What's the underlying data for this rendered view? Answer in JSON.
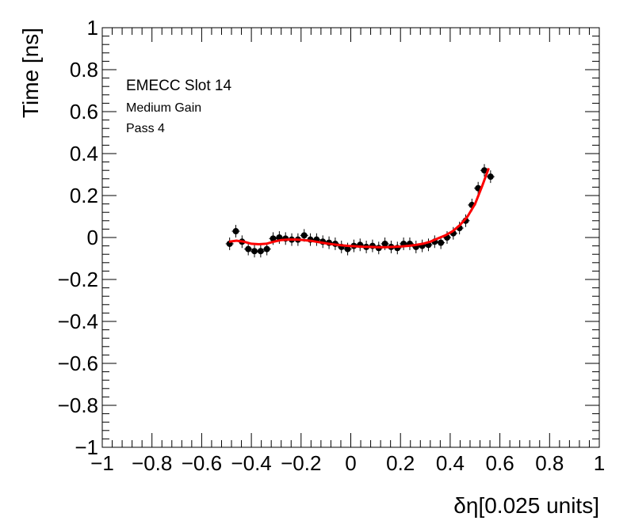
{
  "chart_data": {
    "type": "scatter",
    "title": "",
    "xlabel": "δη[0.025 units]",
    "ylabel": "Time [ns]",
    "xlim": [
      -1,
      1
    ],
    "ylim": [
      -1,
      1
    ],
    "grid": false,
    "x_ticks": [
      "−1",
      "−0.8",
      "−0.6",
      "−0.4",
      "−0.2",
      "0",
      "0.2",
      "0.4",
      "0.6",
      "0.8",
      "1"
    ],
    "y_ticks": [
      "−1",
      "−0.8",
      "−0.6",
      "−0.4",
      "−0.2",
      "0",
      "0.2",
      "0.4",
      "0.6",
      "0.8",
      "1"
    ],
    "annotations": [
      "EMECC Slot 14",
      "Medium Gain",
      "Pass 4"
    ],
    "series": [
      {
        "type": "scatter",
        "color": "#000000",
        "error_y": 0.03,
        "points": [
          [
            -0.4875,
            -0.03
          ],
          [
            -0.4625,
            0.03
          ],
          [
            -0.4375,
            -0.02
          ],
          [
            -0.4125,
            -0.055
          ],
          [
            -0.3875,
            -0.065
          ],
          [
            -0.3625,
            -0.065
          ],
          [
            -0.3375,
            -0.055
          ],
          [
            -0.3125,
            -0.005
          ],
          [
            -0.2875,
            0.0
          ],
          [
            -0.2625,
            -0.005
          ],
          [
            -0.2375,
            -0.01
          ],
          [
            -0.2125,
            -0.01
          ],
          [
            -0.1875,
            0.01
          ],
          [
            -0.1625,
            -0.01
          ],
          [
            -0.1375,
            -0.01
          ],
          [
            -0.1125,
            -0.02
          ],
          [
            -0.0875,
            -0.025
          ],
          [
            -0.0625,
            -0.03
          ],
          [
            -0.0375,
            -0.045
          ],
          [
            -0.0125,
            -0.055
          ],
          [
            0.0125,
            -0.04
          ],
          [
            0.0375,
            -0.035
          ],
          [
            0.0625,
            -0.045
          ],
          [
            0.0875,
            -0.04
          ],
          [
            0.1125,
            -0.05
          ],
          [
            0.1375,
            -0.03
          ],
          [
            0.1625,
            -0.045
          ],
          [
            0.1875,
            -0.05
          ],
          [
            0.2125,
            -0.03
          ],
          [
            0.2375,
            -0.03
          ],
          [
            0.2625,
            -0.045
          ],
          [
            0.2875,
            -0.04
          ],
          [
            0.3125,
            -0.035
          ],
          [
            0.3375,
            -0.02
          ],
          [
            0.3625,
            -0.025
          ],
          [
            0.3875,
            0.0
          ],
          [
            0.4125,
            0.02
          ],
          [
            0.4375,
            0.045
          ],
          [
            0.4625,
            0.08
          ],
          [
            0.4875,
            0.155
          ],
          [
            0.5125,
            0.235
          ],
          [
            0.5375,
            0.32
          ],
          [
            0.5625,
            0.29
          ]
        ]
      },
      {
        "type": "line",
        "color": "#ff0000",
        "points": [
          [
            -0.49,
            -0.02
          ],
          [
            -0.46,
            -0.015
          ],
          [
            -0.43,
            -0.02
          ],
          [
            -0.4,
            -0.03
          ],
          [
            -0.37,
            -0.032
          ],
          [
            -0.34,
            -0.03
          ],
          [
            -0.31,
            -0.02
          ],
          [
            -0.28,
            -0.012
          ],
          [
            -0.25,
            -0.01
          ],
          [
            -0.22,
            -0.01
          ],
          [
            -0.19,
            -0.012
          ],
          [
            -0.16,
            -0.016
          ],
          [
            -0.13,
            -0.022
          ],
          [
            -0.1,
            -0.028
          ],
          [
            -0.07,
            -0.033
          ],
          [
            -0.04,
            -0.037
          ],
          [
            -0.01,
            -0.04
          ],
          [
            0.02,
            -0.042
          ],
          [
            0.05,
            -0.044
          ],
          [
            0.08,
            -0.045
          ],
          [
            0.11,
            -0.046
          ],
          [
            0.14,
            -0.046
          ],
          [
            0.17,
            -0.045
          ],
          [
            0.2,
            -0.043
          ],
          [
            0.23,
            -0.04
          ],
          [
            0.26,
            -0.036
          ],
          [
            0.29,
            -0.03
          ],
          [
            0.32,
            -0.02
          ],
          [
            0.35,
            -0.005
          ],
          [
            0.38,
            0.01
          ],
          [
            0.41,
            0.03
          ],
          [
            0.44,
            0.06
          ],
          [
            0.47,
            0.1
          ],
          [
            0.5,
            0.16
          ],
          [
            0.53,
            0.25
          ],
          [
            0.555,
            0.33
          ]
        ]
      }
    ]
  }
}
